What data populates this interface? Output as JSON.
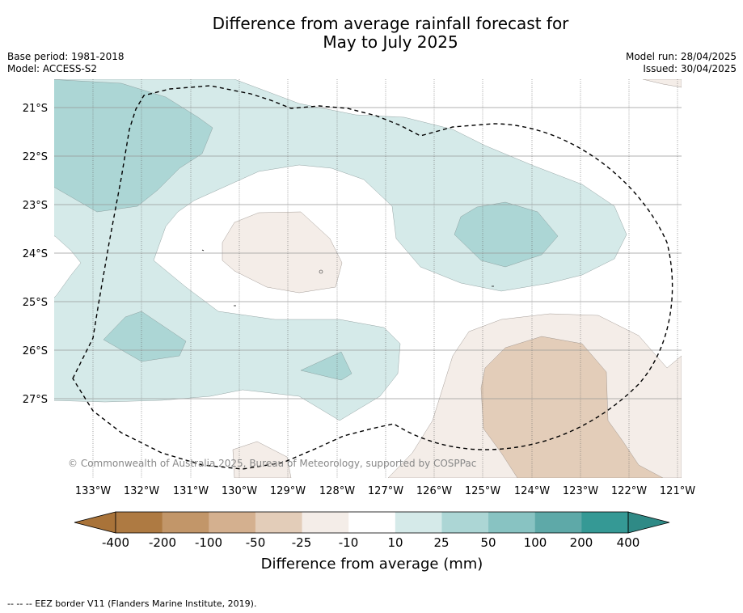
{
  "title_line1": "Difference from average rainfall forecast for",
  "title_line2": "May to July 2025",
  "base_period": "Base period: 1981-2018",
  "model": "Model: ACCESS-S2",
  "model_run": "Model run: 28/04/2025",
  "issued": "Issued: 30/04/2025",
  "copyright": "© Commonwealth of Australia 2025, Bureau of Meteorology, supported by COSPPac",
  "map": {
    "lon_labels": [
      "133°W",
      "132°W",
      "131°W",
      "130°W",
      "129°W",
      "128°W",
      "127°W",
      "126°W",
      "125°W",
      "124°W",
      "123°W",
      "122°W",
      "121°W"
    ],
    "lat_labels": [
      "21°S",
      "22°S",
      "23°S",
      "24°S",
      "25°S",
      "26°S",
      "27°S"
    ]
  },
  "colorbar": {
    "ticks": [
      "-400",
      "-200",
      "-100",
      "-50",
      "-25",
      "-10",
      "10",
      "25",
      "50",
      "100",
      "200",
      "400"
    ],
    "label": "Difference from average (mm)",
    "colors": [
      "#a97339",
      "#ae7a42",
      "#c29669",
      "#d4b08f",
      "#e3cdb9",
      "#f4ede8",
      "#ffffff",
      "#d5eae9",
      "#acd6d5",
      "#88c3c2",
      "#5ea9a8",
      "#359995",
      "#2f8a86"
    ]
  },
  "footer": "--  --  -- EEZ border V11 (Flanders Marine Institute, 2019)."
}
